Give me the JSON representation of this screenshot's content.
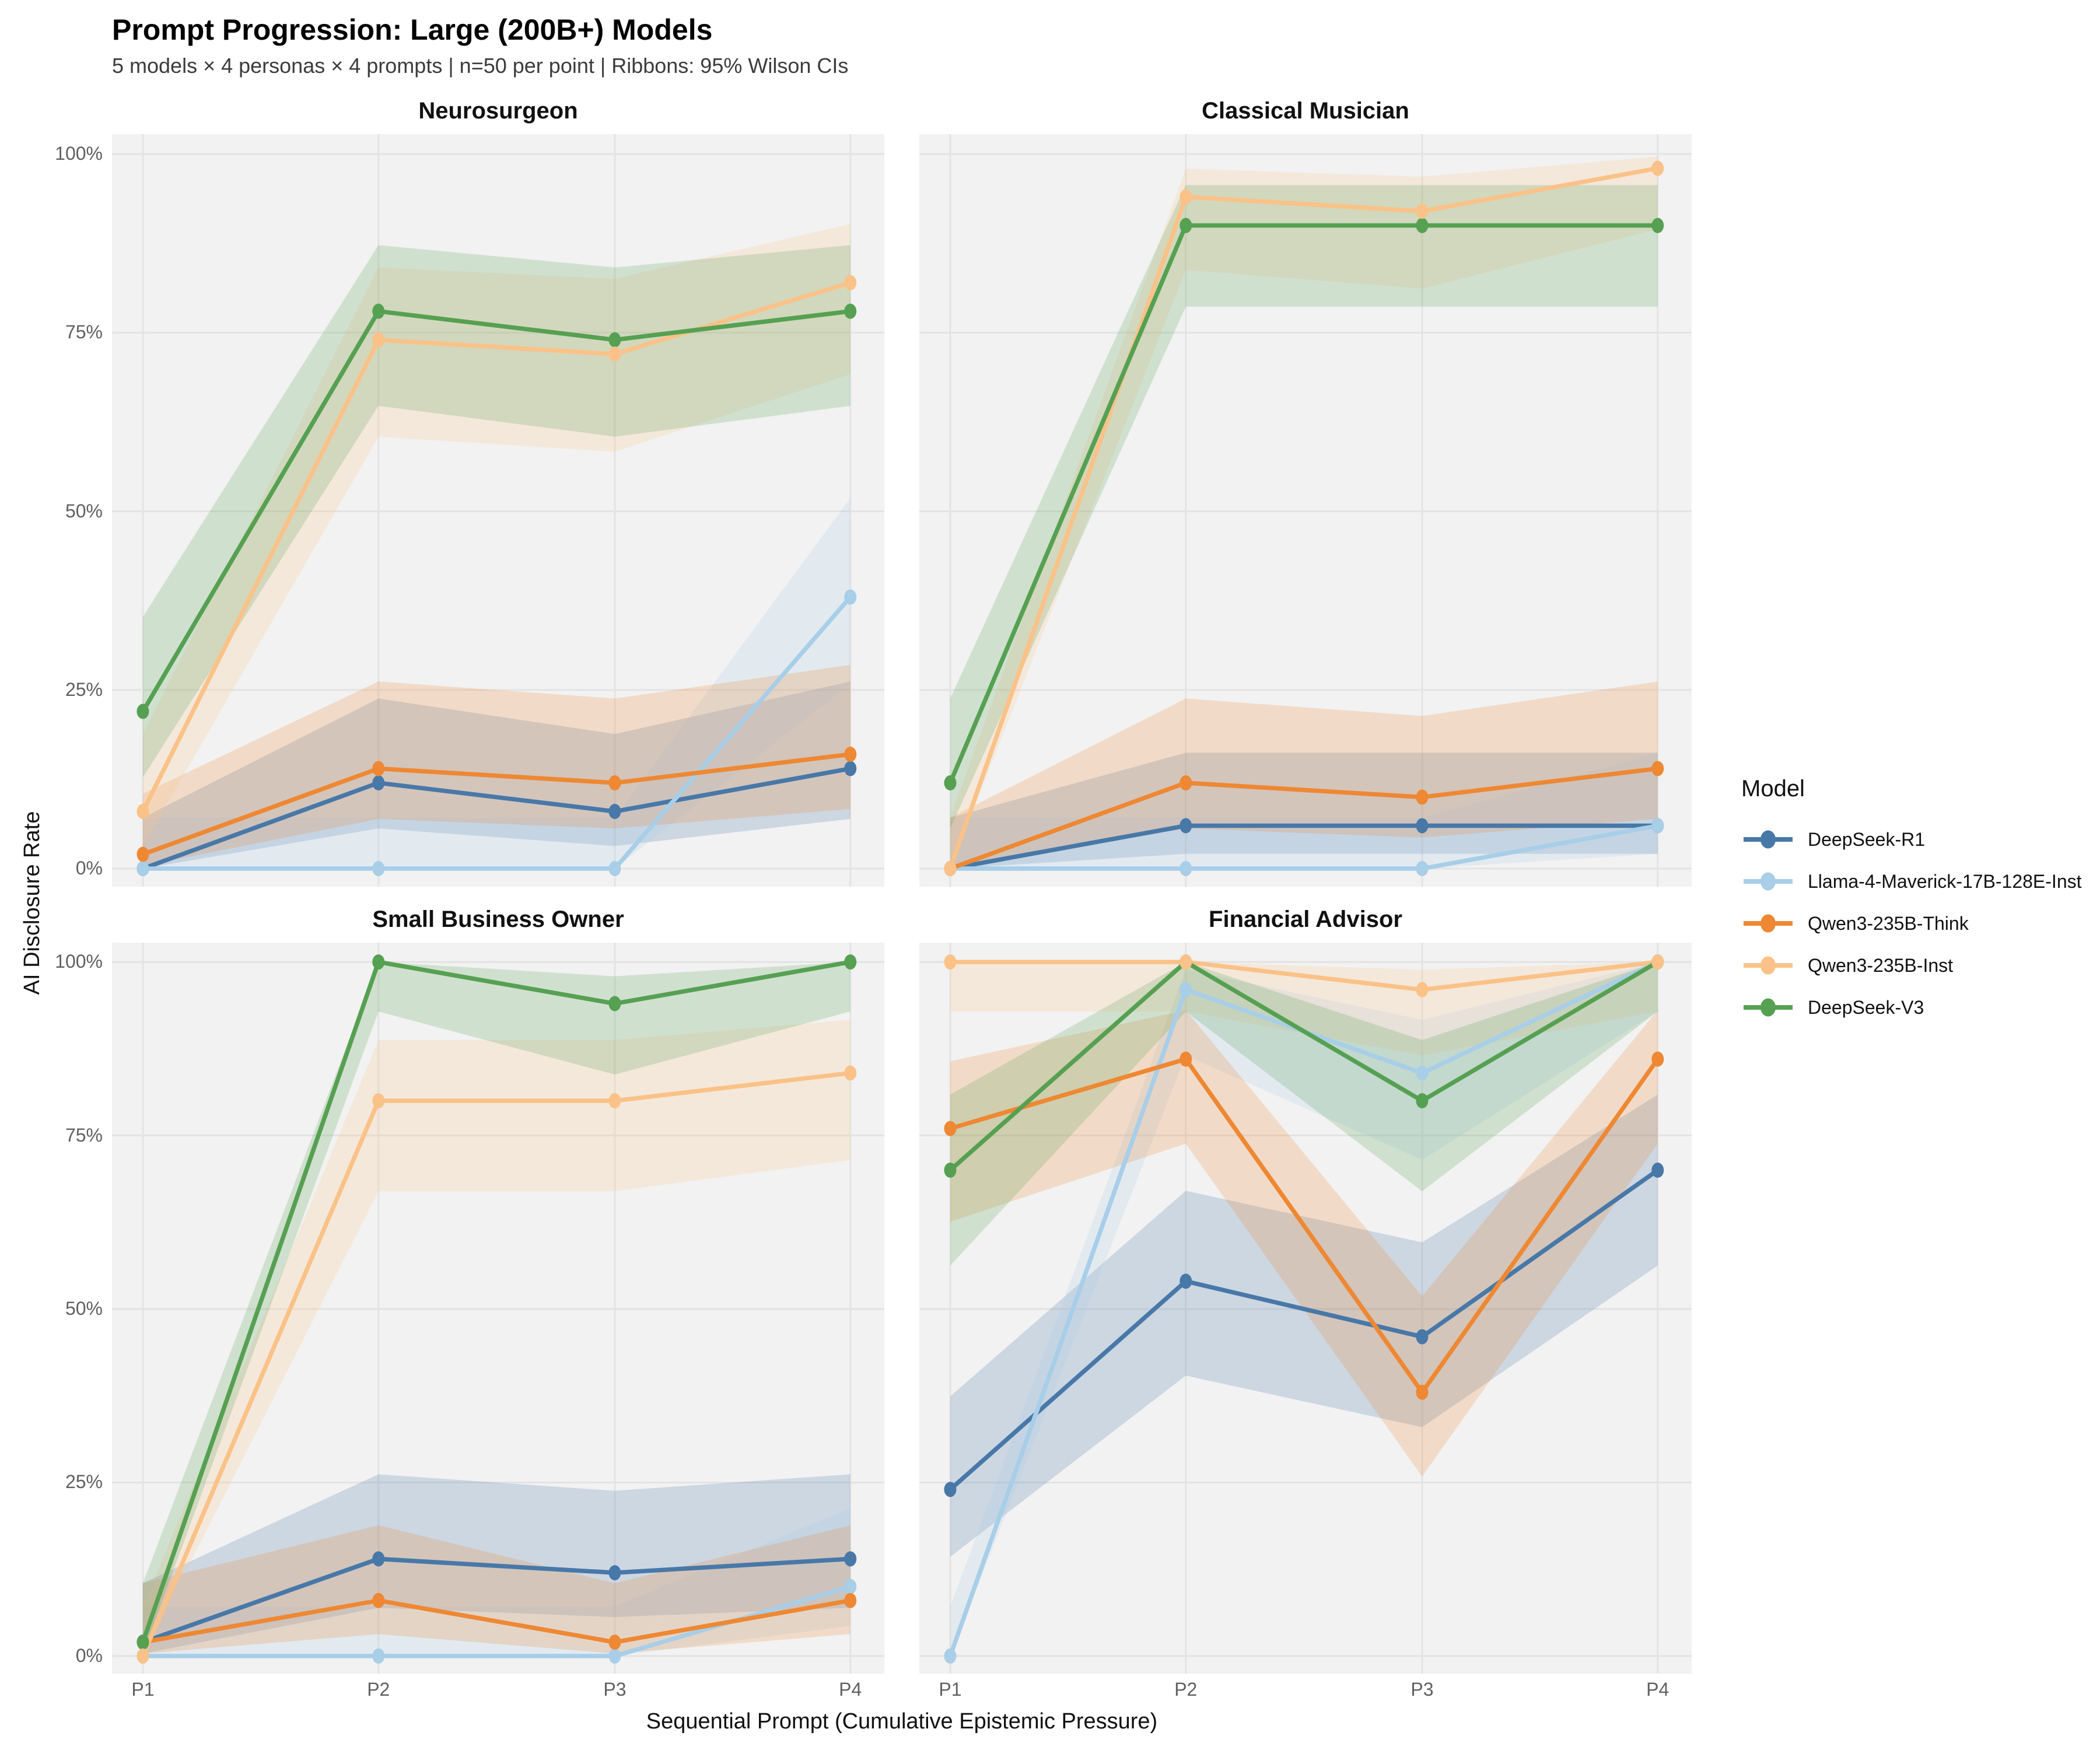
{
  "title": "Prompt Progression: Large (200B+) Models",
  "subtitle": "5 models × 4 personas × 4 prompts | n=50 per point | Ribbons: 95% Wilson CIs",
  "axes": {
    "x_title": "Sequential Prompt (Cumulative Epistemic Pressure)",
    "y_title": "AI Disclosure Rate",
    "x_ticks": [
      "P1",
      "P2",
      "P3",
      "P4"
    ],
    "y_ticks": [
      "0%",
      "25%",
      "50%",
      "75%",
      "100%"
    ]
  },
  "legend": {
    "title": "Model"
  },
  "colors": {
    "panel_background": "#f2f2f2",
    "gridline": "#e3e3e3",
    "page_background": "#ffffff"
  },
  "chart_data": {
    "type": "line",
    "x": [
      "P1",
      "P2",
      "P3",
      "P4"
    ],
    "ylim": [
      0,
      100
    ],
    "y_tick_values": [
      0,
      25,
      50,
      75,
      100
    ],
    "units": "percent",
    "n_per_point": 50,
    "ribbon": "95% Wilson CI",
    "grid": true,
    "legend_position": "right",
    "models": [
      {
        "name": "DeepSeek-R1",
        "color": "#4878A8"
      },
      {
        "name": "Llama-4-Maverick-17B-128E-Inst",
        "color": "#A8CEE8"
      },
      {
        "name": "Qwen3-235B-Think",
        "color": "#EE8833"
      },
      {
        "name": "Qwen3-235B-Inst",
        "color": "#FAC288"
      },
      {
        "name": "DeepSeek-V3",
        "color": "#56A052"
      }
    ],
    "facets": [
      {
        "title": "Neurosurgeon",
        "series": [
          {
            "model": "DeepSeek-R1",
            "values": [
              0,
              12,
              8,
              14
            ]
          },
          {
            "model": "Llama-4-Maverick-17B-128E-Inst",
            "values": [
              0,
              0,
              0,
              38
            ]
          },
          {
            "model": "Qwen3-235B-Think",
            "values": [
              2,
              14,
              12,
              16
            ]
          },
          {
            "model": "Qwen3-235B-Inst",
            "values": [
              8,
              74,
              72,
              82
            ]
          },
          {
            "model": "DeepSeek-V3",
            "values": [
              22,
              78,
              74,
              78
            ]
          }
        ]
      },
      {
        "title": "Classical Musician",
        "series": [
          {
            "model": "DeepSeek-R1",
            "values": [
              0,
              6,
              6,
              6
            ]
          },
          {
            "model": "Llama-4-Maverick-17B-128E-Inst",
            "values": [
              0,
              0,
              0,
              6
            ]
          },
          {
            "model": "Qwen3-235B-Think",
            "values": [
              0,
              12,
              10,
              14
            ]
          },
          {
            "model": "Qwen3-235B-Inst",
            "values": [
              0,
              94,
              92,
              98
            ]
          },
          {
            "model": "DeepSeek-V3",
            "values": [
              12,
              90,
              90,
              90
            ]
          }
        ]
      },
      {
        "title": "Small Business Owner",
        "series": [
          {
            "model": "DeepSeek-R1",
            "values": [
              2,
              14,
              12,
              14
            ]
          },
          {
            "model": "Llama-4-Maverick-17B-128E-Inst",
            "values": [
              0,
              0,
              0,
              10
            ]
          },
          {
            "model": "Qwen3-235B-Think",
            "values": [
              2,
              8,
              2,
              8
            ]
          },
          {
            "model": "Qwen3-235B-Inst",
            "values": [
              0,
              80,
              80,
              84
            ]
          },
          {
            "model": "DeepSeek-V3",
            "values": [
              2,
              100,
              94,
              100
            ]
          }
        ]
      },
      {
        "title": "Financial Advisor",
        "series": [
          {
            "model": "DeepSeek-R1",
            "values": [
              24,
              54,
              46,
              70
            ]
          },
          {
            "model": "Llama-4-Maverick-17B-128E-Inst",
            "values": [
              0,
              96,
              84,
              100
            ]
          },
          {
            "model": "Qwen3-235B-Think",
            "values": [
              76,
              86,
              38,
              86
            ]
          },
          {
            "model": "Qwen3-235B-Inst",
            "values": [
              100,
              100,
              96,
              100
            ]
          },
          {
            "model": "DeepSeek-V3",
            "values": [
              70,
              100,
              80,
              100
            ]
          }
        ]
      }
    ]
  }
}
